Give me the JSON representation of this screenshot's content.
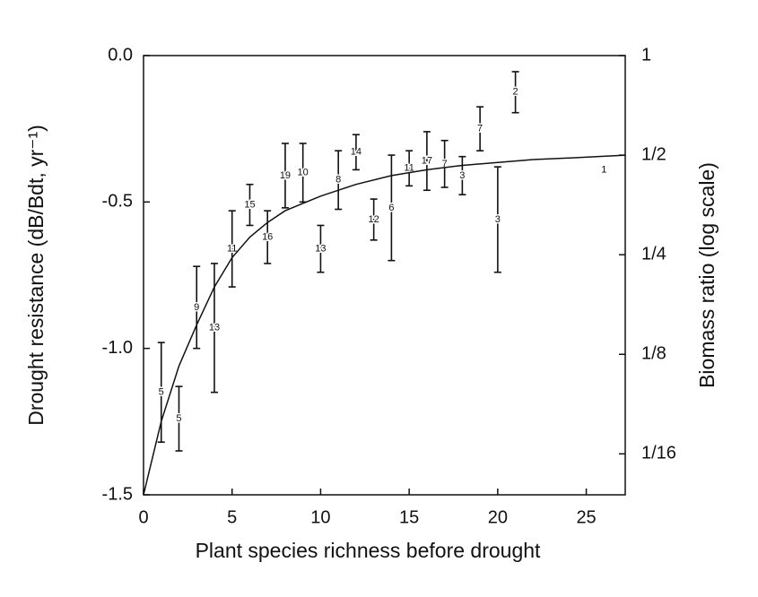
{
  "chart_data": {
    "type": "errorbar",
    "x_label": "Plant species richness before drought",
    "y_label": "Drought resistance (dB/Bdt, yr⁻¹)",
    "y2_label": "Biomass ratio (log scale)",
    "xlim": [
      0,
      27.2
    ],
    "xticks": [
      0,
      5,
      10,
      15,
      20,
      25
    ],
    "ylim": [
      -1.5,
      0
    ],
    "yticks": [
      {
        "value": 0,
        "label": "0.0"
      },
      {
        "value": -0.5,
        "label": "-0.5"
      },
      {
        "value": -1,
        "label": "-1.0"
      },
      {
        "value": -1.5,
        "label": "-1.5"
      }
    ],
    "y2lim": [
      0.047,
      1
    ],
    "y2log": true,
    "y2ticks": [
      1,
      {
        "value": 0.5,
        "label": "1/2"
      },
      {
        "value": 0.25,
        "label": "1/4"
      },
      {
        "value": 0.125,
        "label": "1/8"
      },
      {
        "value": 0.0625,
        "label": "1/16"
      }
    ],
    "color": "#111111",
    "series": [
      {
        "type": "errorbar",
        "x": [
          1,
          2,
          3,
          4,
          5,
          6,
          7,
          8,
          9,
          10,
          11,
          12,
          13,
          14,
          15,
          16,
          17,
          18,
          19,
          20,
          21,
          26
        ],
        "values": [
          -1.15,
          -1.24,
          -0.86,
          -0.93,
          -0.66,
          -0.51,
          -0.62,
          -0.41,
          -0.4,
          -0.66,
          -0.425,
          -0.33,
          -0.56,
          -0.52,
          -0.385,
          -0.36,
          -0.37,
          -0.41,
          -0.25,
          -0.56,
          -0.125,
          -0.39
        ],
        "errors": [
          0.17,
          0.11,
          0.14,
          0.22,
          0.13,
          0.07,
          0.09,
          0.11,
          0.1,
          0.08,
          0.1,
          0.06,
          0.07,
          0.18,
          0.06,
          0.1,
          0.08,
          0.065,
          0.075,
          0.18,
          0.07,
          null
        ],
        "labels": [
          "5",
          "5",
          "9",
          "13",
          "11",
          "15",
          "16",
          "19",
          "10",
          "13",
          "8",
          "14",
          "12",
          "6",
          "11",
          "17",
          "7",
          "3",
          "7",
          "3",
          "2",
          "1"
        ]
      },
      {
        "type": "line",
        "x": [
          0,
          1,
          2,
          3,
          4,
          5,
          6,
          7,
          8,
          10,
          12,
          14,
          16,
          18,
          20,
          22,
          24,
          27.2
        ],
        "values": [
          -1.5,
          -1.25,
          -1.06,
          -0.92,
          -0.79,
          -0.69,
          -0.62,
          -0.57,
          -0.53,
          -0.48,
          -0.44,
          -0.41,
          -0.39,
          -0.375,
          -0.365,
          -0.355,
          -0.35,
          -0.34
        ]
      }
    ]
  }
}
